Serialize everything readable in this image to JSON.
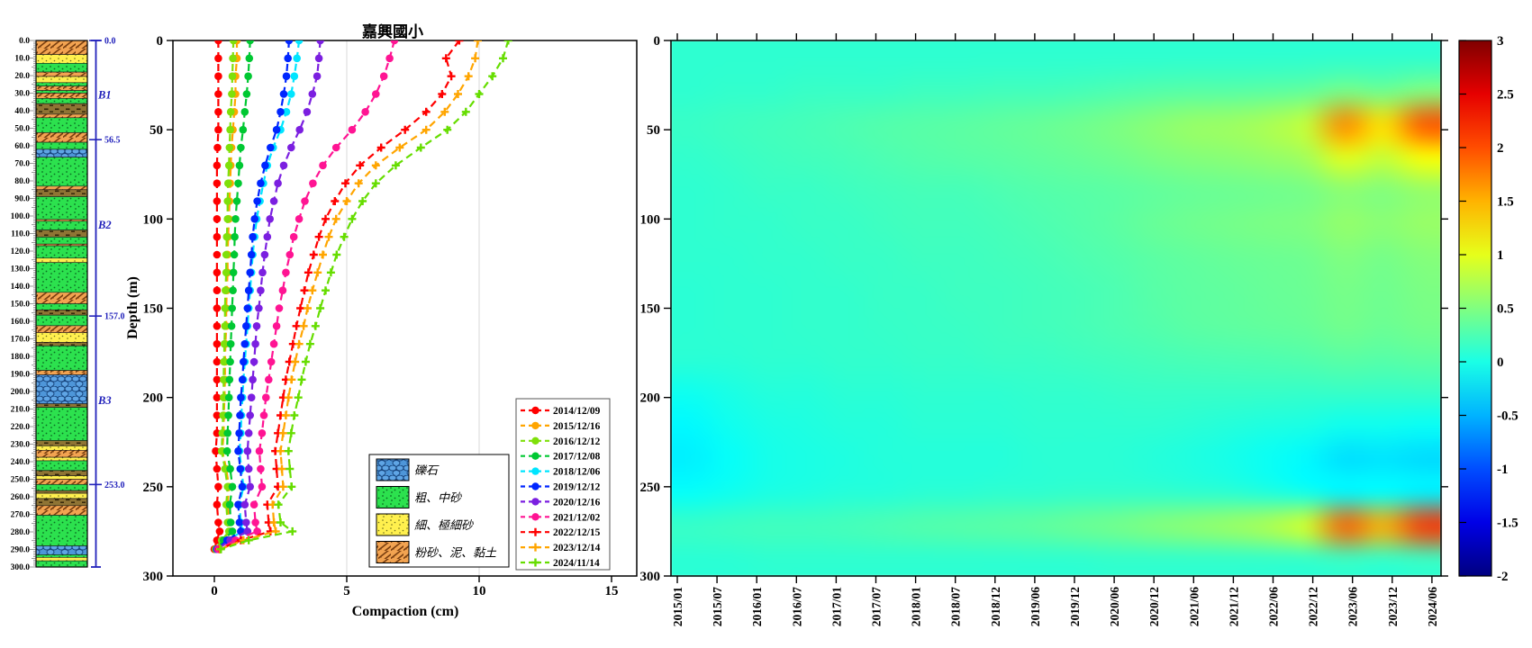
{
  "borehole": {
    "ruler_labels": [
      "0.0",
      "10.0",
      "20.0",
      "30.0",
      "40.0",
      "50.0",
      "60.0",
      "70.0",
      "80.0",
      "90.0",
      "100.0",
      "110.0",
      "120.0",
      "130.0",
      "140.0",
      "150.0",
      "160.0",
      "170.0",
      "180.0",
      "190.0",
      "200.0",
      "210.0",
      "220.0",
      "230.0",
      "240.0",
      "250.0",
      "260.0",
      "270.0",
      "280.0",
      "290.0",
      "300.0"
    ],
    "depth_max": 300,
    "zones": [
      {
        "label": "B1",
        "depth": 31
      },
      {
        "label": "B2",
        "depth": 105
      },
      {
        "label": "B3",
        "depth": 205
      }
    ],
    "markers": [
      {
        "depth": 0,
        "label": "0.0"
      },
      {
        "depth": 56.5,
        "label": "56.5"
      },
      {
        "depth": 157,
        "label": "157.0"
      },
      {
        "depth": 253,
        "label": "253.0"
      }
    ],
    "marker_color": "#2222BB",
    "layers": [
      [
        0,
        8,
        "c"
      ],
      [
        8,
        13,
        "f"
      ],
      [
        13,
        18,
        "s"
      ],
      [
        18,
        20.5,
        "c"
      ],
      [
        20.5,
        24,
        "f"
      ],
      [
        24,
        26,
        "s"
      ],
      [
        26,
        28.5,
        "c"
      ],
      [
        28.5,
        30,
        "s"
      ],
      [
        30,
        33,
        "c"
      ],
      [
        33,
        36,
        "s"
      ],
      [
        36,
        42,
        "m"
      ],
      [
        42,
        44,
        "c"
      ],
      [
        44,
        52.5,
        "s"
      ],
      [
        52.5,
        58,
        "c"
      ],
      [
        58,
        62,
        "s"
      ],
      [
        62,
        66.5,
        "g"
      ],
      [
        66.5,
        83,
        "s"
      ],
      [
        83,
        85,
        "c"
      ],
      [
        85,
        89,
        "m"
      ],
      [
        89,
        102,
        "s"
      ],
      [
        102,
        103,
        "c"
      ],
      [
        103,
        108,
        "s"
      ],
      [
        108,
        112,
        "m"
      ],
      [
        112,
        116,
        "s"
      ],
      [
        116,
        117,
        "c"
      ],
      [
        117,
        124,
        "s"
      ],
      [
        124,
        126.5,
        "f"
      ],
      [
        126.5,
        143.5,
        "s"
      ],
      [
        143.5,
        150,
        "c"
      ],
      [
        150,
        153.5,
        "s"
      ],
      [
        153.5,
        156.5,
        "m"
      ],
      [
        156.5,
        162.5,
        "s"
      ],
      [
        162.5,
        166.5,
        "c"
      ],
      [
        166.5,
        172,
        "f"
      ],
      [
        172,
        174,
        "m"
      ],
      [
        174,
        188,
        "s"
      ],
      [
        188,
        190.5,
        "c"
      ],
      [
        190.5,
        207,
        "g"
      ],
      [
        207,
        209,
        "m"
      ],
      [
        209,
        228,
        "s"
      ],
      [
        228,
        231,
        "m"
      ],
      [
        231,
        233.5,
        "f"
      ],
      [
        233.5,
        237.5,
        "c"
      ],
      [
        237.5,
        239.5,
        "f"
      ],
      [
        239.5,
        245,
        "s"
      ],
      [
        245,
        248,
        "m"
      ],
      [
        248,
        250,
        "f"
      ],
      [
        250,
        253,
        "c"
      ],
      [
        253,
        256.5,
        "s"
      ],
      [
        256.5,
        258,
        "m"
      ],
      [
        258,
        261,
        "f"
      ],
      [
        261,
        265,
        "m"
      ],
      [
        265,
        270.5,
        "c"
      ],
      [
        270.5,
        288,
        "s"
      ],
      [
        288,
        293,
        "g"
      ],
      [
        293,
        294.5,
        "s"
      ],
      [
        294.5,
        296.5,
        "f"
      ],
      [
        296.5,
        300,
        "s"
      ]
    ],
    "litho_legend": [
      {
        "type": "g",
        "label": "礫石"
      },
      {
        "type": "s",
        "label": "粗、中砂"
      },
      {
        "type": "f",
        "label": "細、極細砂"
      },
      {
        "type": "c",
        "label": "粉砂、泥、黏土"
      }
    ]
  },
  "chart_data": [
    {
      "type": "line",
      "title": "嘉興國小",
      "xlabel": "Compaction (cm)",
      "ylabel": "Depth (m)",
      "xlim": [
        0,
        15
      ],
      "ylim": [
        300,
        0
      ],
      "xticks": [
        0,
        5,
        10,
        15
      ],
      "yticks": [
        0,
        50,
        100,
        150,
        200,
        250,
        300
      ],
      "grid_x": [
        5,
        10
      ],
      "depths": [
        0,
        10,
        20,
        30,
        40,
        50,
        60,
        70,
        80,
        90,
        100,
        110,
        120,
        130,
        140,
        150,
        160,
        170,
        180,
        190,
        200,
        210,
        220,
        230,
        240,
        250,
        260,
        270,
        275,
        280,
        285
      ],
      "series": [
        {
          "name": "2014/12/09",
          "color": "#FF0000",
          "marker": "circle",
          "values": [
            0.15,
            0.15,
            0.15,
            0.15,
            0.15,
            0.15,
            0.12,
            0.1,
            0.1,
            0.1,
            0.1,
            0.1,
            0.1,
            0.1,
            0.1,
            0.1,
            0.1,
            0.1,
            0.1,
            0.1,
            0.1,
            0.1,
            0.1,
            0.05,
            0.1,
            0.15,
            0.1,
            0.15,
            0.2,
            0.1,
            0
          ]
        },
        {
          "name": "2015/12/16",
          "color": "#FFA500",
          "marker": "circle",
          "values": [
            0.85,
            0.85,
            0.8,
            0.8,
            0.75,
            0.7,
            0.65,
            0.62,
            0.6,
            0.57,
            0.55,
            0.52,
            0.5,
            0.5,
            0.47,
            0.45,
            0.45,
            0.42,
            0.4,
            0.4,
            0.38,
            0.36,
            0.35,
            0.3,
            0.45,
            0.55,
            0.5,
            0.55,
            0.6,
            0.3,
            0.05
          ]
        },
        {
          "name": "2016/12/12",
          "color": "#7FE00A",
          "marker": "circle",
          "values": [
            0.72,
            0.7,
            0.68,
            0.66,
            0.62,
            0.6,
            0.57,
            0.55,
            0.52,
            0.5,
            0.5,
            0.47,
            0.45,
            0.45,
            0.42,
            0.4,
            0.4,
            0.38,
            0.36,
            0.35,
            0.35,
            0.33,
            0.3,
            0.28,
            0.4,
            0.5,
            0.45,
            0.5,
            0.55,
            0.28,
            0.05
          ]
        },
        {
          "name": "2017/12/08",
          "color": "#00C832",
          "marker": "circle",
          "values": [
            1.35,
            1.32,
            1.28,
            1.22,
            1.15,
            1.08,
            1.0,
            0.95,
            0.9,
            0.85,
            0.8,
            0.77,
            0.75,
            0.72,
            0.7,
            0.67,
            0.65,
            0.62,
            0.6,
            0.57,
            0.55,
            0.53,
            0.5,
            0.48,
            0.6,
            0.68,
            0.58,
            0.62,
            0.68,
            0.35,
            0.08
          ]
        },
        {
          "name": "2018/12/06",
          "color": "#00E5FF",
          "marker": "circle",
          "values": [
            3.2,
            3.12,
            3.02,
            2.9,
            2.72,
            2.5,
            2.22,
            2.0,
            1.85,
            1.72,
            1.6,
            1.52,
            1.45,
            1.4,
            1.35,
            1.3,
            1.25,
            1.2,
            1.15,
            1.1,
            1.06,
            1.02,
            1.0,
            0.95,
            1.02,
            1.1,
            0.95,
            1.0,
            1.05,
            0.5,
            0.1
          ]
        },
        {
          "name": "2019/12/12",
          "color": "#0026FF",
          "marker": "circle",
          "values": [
            2.82,
            2.78,
            2.72,
            2.62,
            2.5,
            2.35,
            2.12,
            1.92,
            1.75,
            1.62,
            1.52,
            1.45,
            1.4,
            1.35,
            1.3,
            1.25,
            1.2,
            1.15,
            1.1,
            1.06,
            1.0,
            0.97,
            0.94,
            0.9,
            0.98,
            1.05,
            0.9,
            0.95,
            1.0,
            0.48,
            0.1
          ]
        },
        {
          "name": "2020/12/16",
          "color": "#7B1FE0",
          "marker": "circle",
          "values": [
            4.0,
            3.95,
            3.88,
            3.7,
            3.5,
            3.22,
            2.9,
            2.62,
            2.4,
            2.25,
            2.1,
            2.0,
            1.9,
            1.82,
            1.75,
            1.68,
            1.6,
            1.55,
            1.5,
            1.45,
            1.4,
            1.35,
            1.3,
            1.25,
            1.3,
            1.35,
            1.15,
            1.2,
            1.25,
            0.6,
            0.12
          ]
        },
        {
          "name": "2021/12/02",
          "color": "#FF1493",
          "marker": "circle",
          "values": [
            6.8,
            6.62,
            6.4,
            6.1,
            5.7,
            5.2,
            4.6,
            4.1,
            3.72,
            3.42,
            3.2,
            3.0,
            2.85,
            2.7,
            2.58,
            2.45,
            2.35,
            2.25,
            2.15,
            2.05,
            1.95,
            1.87,
            1.8,
            1.7,
            1.75,
            1.8,
            1.5,
            1.55,
            1.62,
            0.8,
            0.15
          ]
        },
        {
          "name": "2022/12/15",
          "color": "#FF0000",
          "marker": "plus",
          "values": [
            9.25,
            8.75,
            8.95,
            8.6,
            8.0,
            7.2,
            6.3,
            5.5,
            4.95,
            4.55,
            4.2,
            3.95,
            3.75,
            3.55,
            3.4,
            3.25,
            3.1,
            2.97,
            2.83,
            2.7,
            2.6,
            2.5,
            2.4,
            2.3,
            2.35,
            2.4,
            2.0,
            2.05,
            2.12,
            1.0,
            0.2
          ]
        },
        {
          "name": "2023/12/14",
          "color": "#FFA500",
          "marker": "plus",
          "values": [
            9.95,
            9.85,
            9.6,
            9.2,
            8.7,
            8.0,
            7.0,
            6.1,
            5.45,
            5.0,
            4.6,
            4.32,
            4.1,
            3.9,
            3.7,
            3.52,
            3.37,
            3.2,
            3.05,
            2.92,
            2.8,
            2.7,
            2.6,
            2.5,
            2.55,
            2.6,
            2.2,
            2.25,
            2.32,
            1.1,
            0.22
          ]
        },
        {
          "name": "2024/11/14",
          "color": "#66DD00",
          "marker": "plus",
          "values": [
            11.1,
            10.9,
            10.5,
            10.0,
            9.5,
            8.8,
            7.8,
            6.85,
            6.1,
            5.6,
            5.2,
            4.9,
            4.62,
            4.4,
            4.2,
            4.0,
            3.82,
            3.62,
            3.45,
            3.3,
            3.17,
            3.02,
            2.9,
            2.8,
            2.85,
            2.92,
            2.42,
            2.5,
            2.95,
            1.3,
            0.25
          ]
        }
      ]
    },
    {
      "type": "heatmap",
      "x_labels": [
        "2015/01",
        "2015/07",
        "2016/01",
        "2016/07",
        "2017/01",
        "2017/07",
        "2018/01",
        "2018/07",
        "2018/12",
        "2019/06",
        "2019/12",
        "2020/06",
        "2020/12",
        "2021/06",
        "2021/12",
        "2022/06",
        "2022/12",
        "2023/06",
        "2023/12",
        "2024/06"
      ],
      "y_ticks": [
        0,
        50,
        100,
        150,
        200,
        250,
        300
      ],
      "row_depths": [
        0,
        20,
        40,
        60,
        80,
        100,
        120,
        140,
        160,
        180,
        200,
        220,
        240,
        260,
        280,
        300
      ],
      "vmin": -2,
      "vmax": 3,
      "colorbar_ticks": [
        "3",
        "2.5",
        "2",
        "1.5",
        "1",
        "0.5",
        "0",
        "-0.5",
        "-1",
        "-1.5",
        "-2"
      ],
      "values": [
        [
          0.1,
          0.1,
          0.1,
          0.1,
          0.1,
          0.1,
          0.1,
          0.1,
          0.1,
          0.1,
          0.1,
          0.1,
          0.1,
          0.1,
          0.1,
          0.1,
          0.1,
          0.1,
          0.1,
          0.1
        ],
        [
          0.1,
          0.12,
          0.12,
          0.15,
          0.15,
          0.15,
          0.18,
          0.18,
          0.2,
          0.2,
          0.22,
          0.25,
          0.28,
          0.3,
          0.3,
          0.32,
          0.35,
          0.45,
          0.4,
          0.5
        ],
        [
          0.15,
          0.18,
          0.2,
          0.22,
          0.25,
          0.28,
          0.3,
          0.32,
          0.35,
          0.38,
          0.42,
          0.48,
          0.55,
          0.62,
          0.65,
          0.72,
          0.85,
          1.7,
          1.25,
          1.95
        ],
        [
          0.12,
          0.15,
          0.18,
          0.2,
          0.22,
          0.25,
          0.28,
          0.3,
          0.32,
          0.35,
          0.38,
          0.42,
          0.48,
          0.52,
          0.55,
          0.6,
          0.68,
          1.0,
          0.85,
          1.1
        ],
        [
          0.1,
          0.12,
          0.15,
          0.15,
          0.18,
          0.2,
          0.22,
          0.22,
          0.25,
          0.28,
          0.3,
          0.32,
          0.35,
          0.38,
          0.4,
          0.42,
          0.45,
          0.55,
          0.5,
          0.6
        ],
        [
          0.1,
          0.12,
          0.12,
          0.15,
          0.15,
          0.18,
          0.2,
          0.2,
          0.22,
          0.25,
          0.28,
          0.32,
          0.38,
          0.42,
          0.45,
          0.48,
          0.5,
          0.6,
          0.55,
          0.62
        ],
        [
          0.1,
          0.1,
          0.12,
          0.12,
          0.15,
          0.15,
          0.18,
          0.18,
          0.2,
          0.22,
          0.25,
          0.28,
          0.32,
          0.35,
          0.38,
          0.4,
          0.42,
          0.5,
          0.45,
          0.52
        ],
        [
          0.08,
          0.1,
          0.1,
          0.12,
          0.12,
          0.15,
          0.15,
          0.18,
          0.18,
          0.2,
          0.22,
          0.25,
          0.3,
          0.33,
          0.35,
          0.38,
          0.4,
          0.46,
          0.42,
          0.48
        ],
        [
          0.08,
          0.1,
          0.1,
          0.12,
          0.12,
          0.14,
          0.15,
          0.16,
          0.18,
          0.2,
          0.22,
          0.25,
          0.28,
          0.32,
          0.34,
          0.36,
          0.38,
          0.44,
          0.4,
          0.45
        ],
        [
          0.08,
          0.08,
          0.1,
          0.1,
          0.12,
          0.12,
          0.14,
          0.14,
          0.16,
          0.16,
          0.18,
          0.2,
          0.22,
          0.24,
          0.25,
          0.26,
          0.28,
          0.32,
          0.3,
          0.33
        ],
        [
          -0.05,
          0.0,
          0.05,
          0.05,
          0.08,
          0.08,
          0.1,
          0.1,
          0.1,
          0.12,
          0.12,
          0.14,
          0.15,
          0.15,
          0.15,
          0.15,
          0.14,
          0.15,
          0.14,
          0.15
        ],
        [
          -0.15,
          -0.05,
          0.0,
          0.02,
          0.05,
          0.05,
          0.08,
          0.08,
          0.08,
          0.1,
          0.1,
          0.1,
          0.1,
          0.08,
          0.05,
          0.02,
          0.0,
          -0.05,
          -0.05,
          -0.08
        ],
        [
          -0.2,
          -0.1,
          -0.02,
          0.0,
          0.02,
          0.05,
          0.05,
          0.05,
          0.05,
          0.08,
          0.08,
          0.08,
          0.05,
          0.02,
          -0.02,
          -0.08,
          -0.15,
          -0.28,
          -0.25,
          -0.3
        ],
        [
          -0.1,
          -0.05,
          0.0,
          0.02,
          0.05,
          0.05,
          0.08,
          0.08,
          0.1,
          0.1,
          0.12,
          0.12,
          0.12,
          0.1,
          0.08,
          0.02,
          -0.05,
          -0.15,
          -0.12,
          -0.18
        ],
        [
          0.15,
          0.18,
          0.2,
          0.2,
          0.22,
          0.25,
          0.28,
          0.3,
          0.32,
          0.35,
          0.4,
          0.45,
          0.52,
          0.58,
          0.65,
          0.75,
          0.95,
          1.9,
          1.5,
          2.1
        ],
        [
          0.08,
          0.08,
          0.1,
          0.1,
          0.1,
          0.1,
          0.1,
          0.1,
          0.1,
          0.1,
          0.1,
          0.12,
          0.12,
          0.12,
          0.12,
          0.12,
          0.12,
          0.15,
          0.12,
          0.15
        ]
      ]
    }
  ]
}
